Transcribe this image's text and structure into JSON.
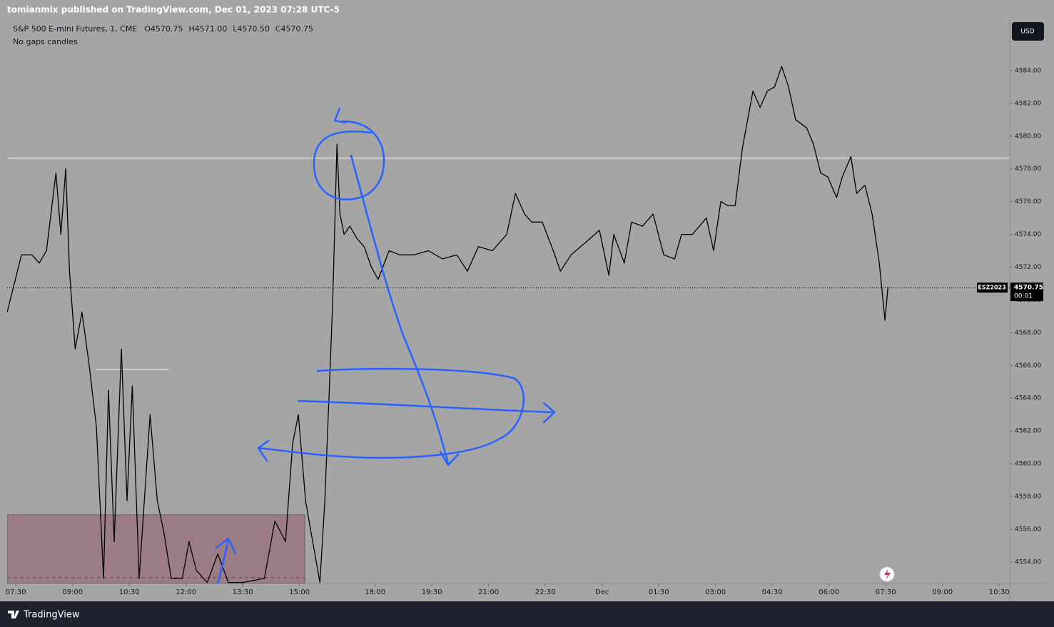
{
  "header": {
    "published": "tomianmix published on TradingView.com, Dec 01, 2023 07:28 UTC-5"
  },
  "footer": {
    "brand": "TradingView"
  },
  "chart_data": {
    "type": "line",
    "title": "S&P 500 E-mini Futures, 1, CME",
    "subtitle": "No gaps candles",
    "currency": "USD",
    "ohlc": [
      {
        "prefix": "O",
        "value": "4570.75"
      },
      {
        "prefix": "H",
        "value": "4571.00"
      },
      {
        "prefix": "L",
        "value": "4570.50"
      },
      {
        "prefix": "C",
        "value": "4570.75"
      }
    ],
    "color": "#000000",
    "background": "#a5a5a5",
    "x": [
      -0.23,
      -0.04,
      0.15,
      0.43,
      0.62,
      0.81,
      1.06,
      1.19,
      1.32,
      1.42,
      1.57,
      1.75,
      1.94,
      2.13,
      2.32,
      2.45,
      2.6,
      2.79,
      2.94,
      3.08,
      3.26,
      3.55,
      3.74,
      3.92,
      4.11,
      4.4,
      4.58,
      4.77,
      5.06,
      5.34,
      5.62,
      6,
      6.57,
      6.85,
      7.13,
      7.32,
      7.47,
      7.66,
      7.79,
      8.04,
      8.17,
      8.3,
      8.38,
      8.49,
      8.57,
      8.68,
      8.83,
      9.02,
      9.21,
      9.4,
      9.58,
      9.87,
      10.15,
      10.53,
      10.91,
      11.28,
      11.66,
      11.94,
      12.23,
      12.6,
      12.98,
      13.21,
      13.45,
      13.64,
      13.92,
      14.21,
      14.4,
      14.68,
      15.06,
      15.43,
      15.68,
      15.81,
      16.09,
      16.28,
      16.57,
      16.85,
      17.13,
      17.42,
      17.6,
      17.89,
      18.26,
      18.45,
      18.64,
      18.83,
      19.02,
      19.21,
      19.49,
      19.68,
      19.87,
      20.06,
      20.25,
      20.43,
      20.62,
      20.91,
      21.09,
      21.28,
      21.47,
      21.7,
      21.85,
      22.08,
      22.23,
      22.45,
      22.64,
      22.83,
      22.98,
      23.06
    ],
    "values": [
      4569.25,
      4571,
      4572.75,
      4572.75,
      4572.25,
      4573,
      4577.75,
      4574,
      4578,
      4571.75,
      4567,
      4569.25,
      4566,
      4562.25,
      4553,
      4564.5,
      4555.25,
      4567,
      4557.75,
      4564.75,
      4553,
      4563,
      4557.75,
      4555.75,
      4553,
      4553,
      4555.25,
      4553.5,
      4552.75,
      4554.5,
      4552.75,
      4552.75,
      4553,
      4556.5,
      4555.25,
      4561.25,
      4563,
      4557.75,
      4556,
      4552.75,
      4557.75,
      4565.25,
      4570,
      4579.5,
      4575.25,
      4574,
      4574.5,
      4573.75,
      4573.25,
      4572,
      4571.25,
      4573,
      4572.75,
      4572.75,
      4573,
      4572.5,
      4572.75,
      4571.75,
      4573.25,
      4573,
      4574,
      4576.5,
      4575.25,
      4574.75,
      4574.75,
      4573,
      4571.75,
      4572.75,
      4573.5,
      4574.25,
      4571.5,
      4574,
      4572.25,
      4574.75,
      4574.5,
      4575.25,
      4572.75,
      4572.5,
      4574,
      4574,
      4575,
      4573,
      4576,
      4575.75,
      4575.75,
      4579.25,
      4582.75,
      4581.75,
      4582.75,
      4583,
      4584.25,
      4583,
      4581,
      4580.5,
      4579.5,
      4577.75,
      4577.5,
      4576.25,
      4577.5,
      4578.75,
      4576.5,
      4577,
      4575.25,
      4572.25,
      4568.75,
      4570.75
    ],
    "xlim": [
      -0.23,
      26.28
    ],
    "xticks": [
      {
        "value": 0,
        "label": "07:30"
      },
      {
        "value": 1.5,
        "label": "09:00"
      },
      {
        "value": 3,
        "label": "10:30"
      },
      {
        "value": 4.5,
        "label": "12:00"
      },
      {
        "value": 6,
        "label": "13:30"
      },
      {
        "value": 7.5,
        "label": "15:00"
      },
      {
        "value": 9.5,
        "label": "18:00"
      },
      {
        "value": 11,
        "label": "19:30"
      },
      {
        "value": 12.5,
        "label": "21:00"
      },
      {
        "value": 14,
        "label": "22:30"
      },
      {
        "value": 15.5,
        "label": "Dec"
      },
      {
        "value": 17,
        "label": "01:30"
      },
      {
        "value": 18.5,
        "label": "03:00"
      },
      {
        "value": 20,
        "label": "04:30"
      },
      {
        "value": 21.5,
        "label": "06:00"
      },
      {
        "value": 23,
        "label": "07:30"
      },
      {
        "value": 24.5,
        "label": "09:00"
      },
      {
        "value": 26,
        "label": "10:30"
      }
    ],
    "ylim": [
      4552.69,
      4587.13
    ],
    "yticks": [
      {
        "value": 4554,
        "label": "4554.00"
      },
      {
        "value": 4556,
        "label": "4556.00"
      },
      {
        "value": 4558,
        "label": "4558.00"
      },
      {
        "value": 4560,
        "label": "4560.00"
      },
      {
        "value": 4562,
        "label": "4562.00"
      },
      {
        "value": 4564,
        "label": "4564.00"
      },
      {
        "value": 4566,
        "label": "4566.00"
      },
      {
        "value": 4568,
        "label": "4568.00"
      },
      {
        "value": 4570,
        "label": "4570.00"
      },
      {
        "value": 4572,
        "label": "4572.00"
      },
      {
        "value": 4574,
        "label": "4574.00"
      },
      {
        "value": 4576,
        "label": "4576.00"
      },
      {
        "value": 4578,
        "label": "4578.00"
      },
      {
        "value": 4580,
        "label": "4580.00"
      },
      {
        "value": 4582,
        "label": "4582.00"
      },
      {
        "value": 4584,
        "label": "4584.00"
      }
    ],
    "grid": false,
    "levels": [
      {
        "value": 4578.65,
        "x": [
          -0.23,
          26.28
        ],
        "color": "#ffffff"
      },
      {
        "value": 4565.75,
        "x": [
          2.13,
          4.04
        ],
        "color": "#ffffff"
      }
    ],
    "zone": {
      "x": [
        -0.23,
        7.64
      ],
      "y": [
        4552.69,
        4556.88
      ],
      "color": "#9c7d86",
      "line": 4553.05
    },
    "last_price": {
      "value": 4570.75,
      "symbol": "ESZ2023",
      "countdown": "00:01"
    }
  }
}
